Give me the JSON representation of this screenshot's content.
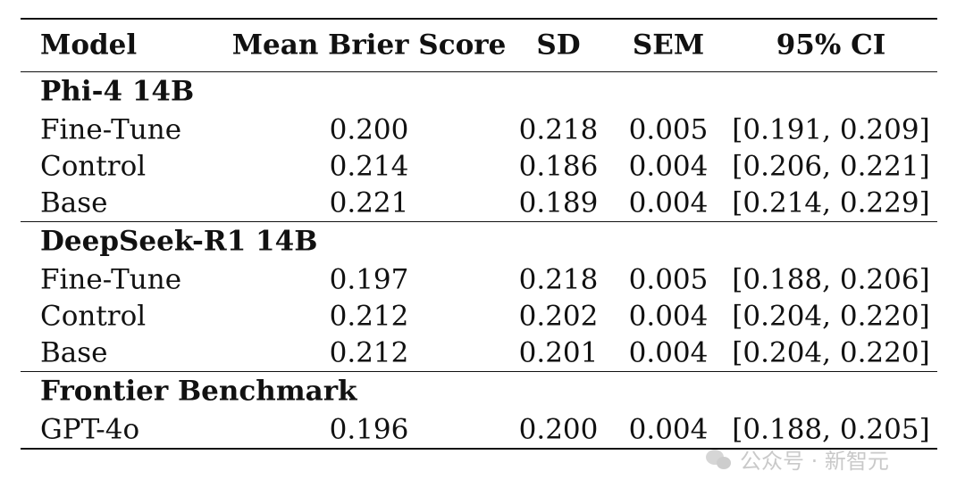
{
  "chart_data": {
    "type": "table",
    "columns": [
      "Model",
      "Mean Brier Score",
      "SD",
      "SEM",
      "95% CI"
    ],
    "groups": [
      {
        "title": "Phi-4 14B",
        "rows": [
          {
            "model": "Fine-Tune",
            "brier": "0.200",
            "sd": "0.218",
            "sem": "0.005",
            "ci": "[0.191, 0.209]"
          },
          {
            "model": "Control",
            "brier": "0.214",
            "sd": "0.186",
            "sem": "0.004",
            "ci": "[0.206, 0.221]"
          },
          {
            "model": "Base",
            "brier": "0.221",
            "sd": "0.189",
            "sem": "0.004",
            "ci": "[0.214, 0.229]"
          }
        ]
      },
      {
        "title": "DeepSeek-R1 14B",
        "rows": [
          {
            "model": "Fine-Tune",
            "brier": "0.197",
            "sd": "0.218",
            "sem": "0.005",
            "ci": "[0.188, 0.206]"
          },
          {
            "model": "Control",
            "brier": "0.212",
            "sd": "0.202",
            "sem": "0.004",
            "ci": "[0.204, 0.220]"
          },
          {
            "model": "Base",
            "brier": "0.212",
            "sd": "0.201",
            "sem": "0.004",
            "ci": "[0.204, 0.220]"
          }
        ]
      },
      {
        "title": "Frontier Benchmark",
        "rows": [
          {
            "model": "GPT-4o",
            "brier": "0.196",
            "sd": "0.200",
            "sem": "0.004",
            "ci": "[0.188, 0.205]"
          }
        ]
      }
    ]
  },
  "watermark": {
    "text": "公众号 · 新智元",
    "icon": "wechat-icon"
  }
}
